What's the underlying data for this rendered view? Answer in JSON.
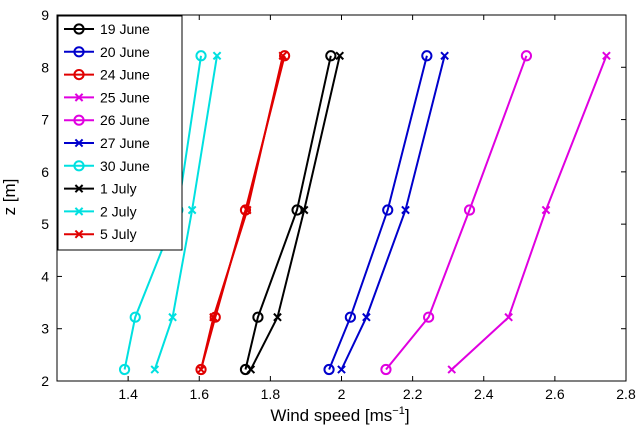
{
  "chart_data": {
    "type": "line",
    "xlabel": "Wind speed [ms",
    "xlabel_sup": "−1",
    "xlabel_end": "]",
    "ylabel": "z [m]",
    "xlim": [
      1.2,
      2.8
    ],
    "ylim": [
      2,
      9
    ],
    "xticks": [
      "1.4",
      "1.6",
      "1.8",
      "2",
      "2.2",
      "2.4",
      "2.6",
      "2.8"
    ],
    "yticks": [
      "2",
      "3",
      "4",
      "5",
      "6",
      "7",
      "8",
      "9"
    ],
    "grid": false,
    "legend_position": "top-left",
    "heights": [
      2.22,
      3.22,
      5.27,
      8.22
    ],
    "series": [
      {
        "name": "19 June",
        "color": "#000000",
        "marker": "circle",
        "x": [
          1.73,
          1.765,
          1.875,
          1.97
        ]
      },
      {
        "name": "20 June",
        "color": "#0000cc",
        "marker": "circle",
        "x": [
          1.965,
          2.025,
          2.13,
          2.24
        ]
      },
      {
        "name": "24 June",
        "color": "#e00000",
        "marker": "circle",
        "x": [
          1.605,
          1.645,
          1.73,
          1.84
        ]
      },
      {
        "name": "25 June",
        "color": "#e000e0",
        "marker": "x",
        "x": [
          2.31,
          2.47,
          2.575,
          2.745
        ]
      },
      {
        "name": "26 June",
        "color": "#e000e0",
        "marker": "circle",
        "x": [
          2.125,
          2.245,
          2.36,
          2.52
        ]
      },
      {
        "name": "27 June",
        "color": "#0000cc",
        "marker": "x",
        "x": [
          2.0,
          2.07,
          2.18,
          2.29
        ]
      },
      {
        "name": "30 June",
        "color": "#00e0e0",
        "marker": "circle",
        "x": [
          1.39,
          1.42,
          1.54,
          1.605
        ]
      },
      {
        "name": "1 July",
        "color": "#000000",
        "marker": "x",
        "x": [
          1.745,
          1.82,
          1.895,
          1.995
        ]
      },
      {
        "name": "2 July",
        "color": "#00e0e0",
        "marker": "x",
        "x": [
          1.475,
          1.525,
          1.58,
          1.65
        ]
      },
      {
        "name": "5 July",
        "color": "#e00000",
        "marker": "x",
        "x": [
          1.605,
          1.64,
          1.735,
          1.835
        ]
      }
    ]
  }
}
